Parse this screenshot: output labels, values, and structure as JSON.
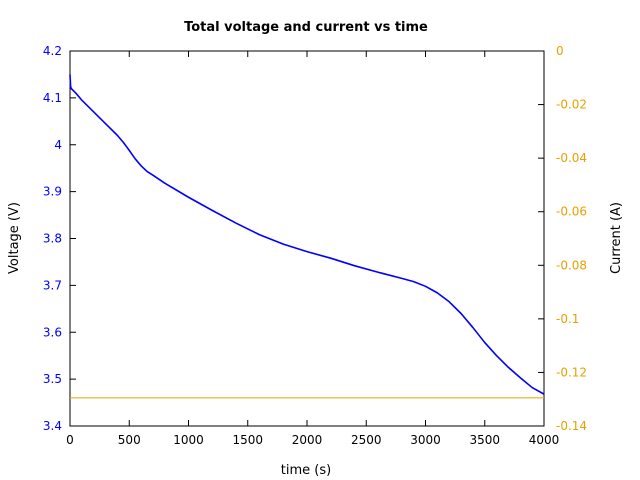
{
  "chart_data": {
    "type": "line",
    "title": "Total voltage and current vs time",
    "xlabel": "time (s)",
    "ylabel_left": "Voltage (V)",
    "ylabel_right": "Current (A)",
    "xlim": [
      0,
      4000
    ],
    "ylim_left": [
      3.4,
      4.2
    ],
    "ylim_right": [
      -0.14,
      0
    ],
    "x_ticks": [
      0,
      500,
      1000,
      1500,
      2000,
      2500,
      3000,
      3500,
      4000
    ],
    "x_tick_labels": [
      "0",
      "500",
      "1000",
      "1500",
      "2000",
      "2500",
      "3000",
      "3500",
      "4000"
    ],
    "y_left_ticks": [
      3.4,
      3.5,
      3.6,
      3.7,
      3.8,
      3.9,
      4.0,
      4.1,
      4.2
    ],
    "y_left_tick_labels": [
      "3.4",
      "3.5",
      "3.6",
      "3.7",
      "3.8",
      "3.9",
      "4",
      "4.1",
      "4.2"
    ],
    "y_right_ticks": [
      -0.14,
      -0.12,
      -0.1,
      -0.08,
      -0.06,
      -0.04,
      -0.02,
      0
    ],
    "y_right_tick_labels": [
      "-0.14",
      "-0.12",
      "-0.1",
      "-0.08",
      "-0.06",
      "-0.04",
      "-0.02",
      "0"
    ],
    "grid": false,
    "colors": {
      "voltage": "#0000ff",
      "current": "#e6a100"
    },
    "series": [
      {
        "axis": "left",
        "x": [
          0,
          5,
          10,
          50,
          100,
          200,
          300,
          400,
          450,
          500,
          550,
          600,
          650,
          700,
          800,
          1000,
          1200,
          1400,
          1600,
          1800,
          2000,
          2200,
          2400,
          2600,
          2800,
          2900,
          3000,
          3100,
          3200,
          3300,
          3400,
          3500,
          3600,
          3700,
          3800,
          3900,
          4000
        ],
        "values": [
          4.15,
          4.125,
          4.12,
          4.11,
          4.095,
          4.07,
          4.045,
          4.02,
          4.005,
          3.988,
          3.97,
          3.955,
          3.943,
          3.935,
          3.918,
          3.888,
          3.86,
          3.833,
          3.808,
          3.788,
          3.772,
          3.758,
          3.742,
          3.728,
          3.715,
          3.708,
          3.698,
          3.684,
          3.665,
          3.64,
          3.61,
          3.578,
          3.55,
          3.525,
          3.503,
          3.482,
          3.468
        ]
      },
      {
        "axis": "right",
        "x": [
          0,
          4000
        ],
        "values": [
          -0.1295,
          -0.1295
        ]
      }
    ]
  }
}
